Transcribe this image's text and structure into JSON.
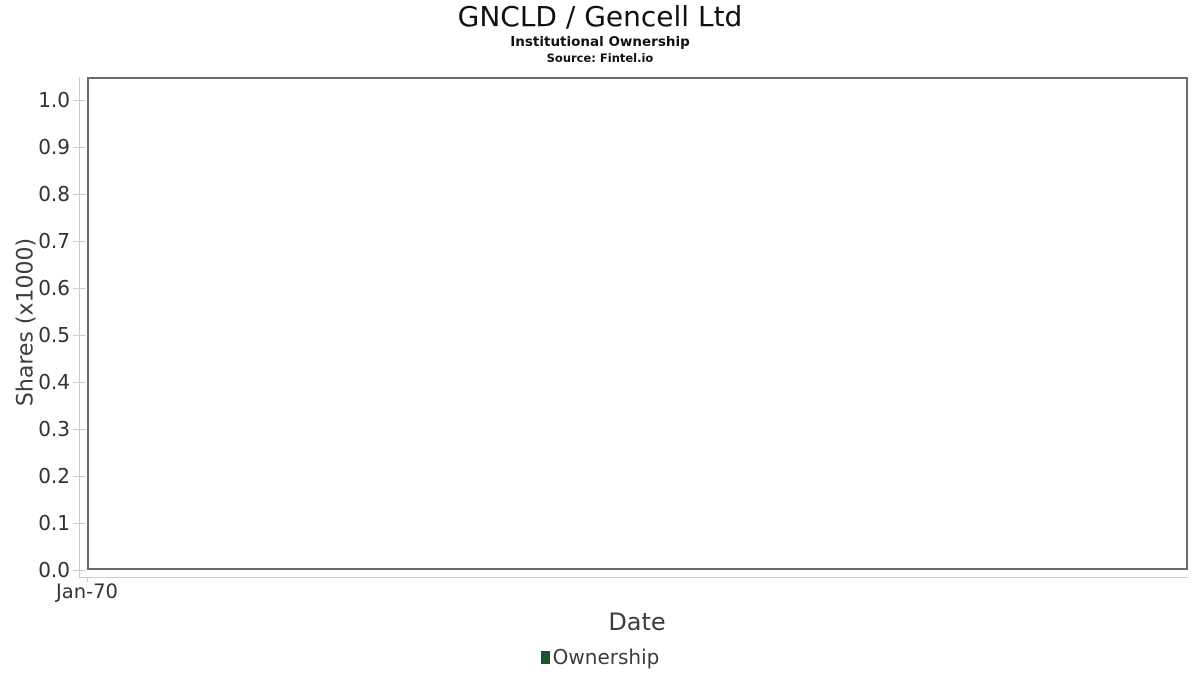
{
  "chart_data": {
    "type": "line",
    "title": "GNCLD / Gencell Ltd",
    "subtitle": "Institutional Ownership",
    "source": "Source: Fintel.io",
    "xlabel": "Date",
    "ylabel": "Shares (x1000)",
    "x_ticks": [
      "Jan-70"
    ],
    "y_ticks": [
      "0.0",
      "0.1",
      "0.2",
      "0.3",
      "0.4",
      "0.5",
      "0.6",
      "0.7",
      "0.8",
      "0.9",
      "1.0"
    ],
    "ylim": [
      0,
      1.05
    ],
    "grid": "horizontal",
    "legend_position": "bottom",
    "series": [
      {
        "name": "Ownership",
        "color": "#1e5130",
        "x": [],
        "values": []
      }
    ]
  },
  "colors": {
    "grid": "#e6e6e6",
    "plot_border": "#6b6b6b",
    "axis_line": "#cccccc",
    "tick_text": "#333333",
    "axis_title_text": "#3d3d3d",
    "title_text": "#111111"
  }
}
